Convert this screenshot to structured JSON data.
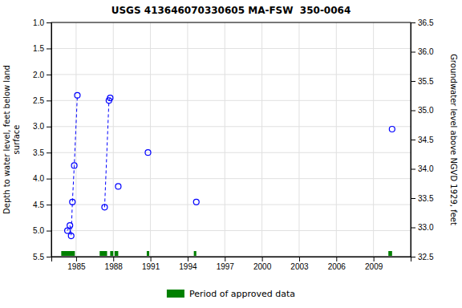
{
  "chart_data": {
    "type": "scatter",
    "title": "USGS 413646070330605 MA-FSW  350-0064",
    "x_label": "",
    "y_label": "Depth to water level, feet below land\nsurface",
    "y2_label": "Groundwater level above NGVD 1929, feet",
    "x": [
      1984.3,
      1984.5,
      1984.6,
      1984.7,
      1984.85,
      1985.1,
      1987.3,
      1987.65,
      1987.75,
      1988.4,
      1990.8,
      1994.7,
      2010.5
    ],
    "series": [
      {
        "type": "scatter",
        "marker": "circle",
        "color": "#0000ff",
        "values": [
          5.0,
          4.9,
          5.1,
          4.45,
          3.75,
          2.4,
          4.55,
          2.5,
          2.45,
          4.15,
          3.5,
          4.45,
          3.05
        ]
      },
      {
        "type": "line",
        "line_style": "dashed",
        "color": "#0000ff",
        "values": [
          5.0,
          4.9,
          5.1,
          4.45,
          3.75,
          2.4,
          null,
          null,
          null,
          null,
          null,
          null,
          null
        ]
      },
      {
        "type": "line",
        "line_style": "dashed",
        "color": "#0000ff",
        "values": [
          null,
          null,
          null,
          null,
          null,
          null,
          4.55,
          2.5,
          2.45,
          null,
          null,
          null,
          null
        ]
      },
      {
        "type": "span",
        "name": "Period of approved data",
        "color": "#008000",
        "ranges": [
          [
            1983.8,
            1984.9
          ],
          [
            1986.9,
            1987.5
          ],
          [
            1987.75,
            1988.0
          ],
          [
            1988.1,
            1988.4
          ],
          [
            1990.7,
            1990.9
          ],
          [
            1994.5,
            1994.7
          ],
          [
            2010.2,
            2010.5
          ]
        ]
      }
    ],
    "xlim": [
      1983,
      2012
    ],
    "xticks": [
      1985,
      1988,
      1991,
      1994,
      1997,
      2000,
      2003,
      2006,
      2009
    ],
    "ylim": [
      5.5,
      1.0
    ],
    "yticks": [
      {
        "value": 1.0,
        "label": "1.0"
      },
      1.5,
      {
        "value": 2.0,
        "label": "2.0"
      },
      2.5,
      {
        "value": 3.0,
        "label": "3.0"
      },
      3.5,
      {
        "value": 4.0,
        "label": "4.0"
      },
      4.5,
      {
        "value": 5.0,
        "label": "5.0"
      },
      5.5
    ],
    "y2lim": [
      32.5,
      36.5
    ],
    "y2ticks": [
      36.5,
      {
        "value": 36.0,
        "label": "36.0"
      },
      35.5,
      {
        "value": 35.0,
        "label": "35.0"
      },
      34.5,
      {
        "value": 34.0,
        "label": "34.0"
      },
      33.5,
      {
        "value": 33.0,
        "label": "33.0"
      },
      32.5
    ],
    "grid": true,
    "legend": "bottom"
  }
}
